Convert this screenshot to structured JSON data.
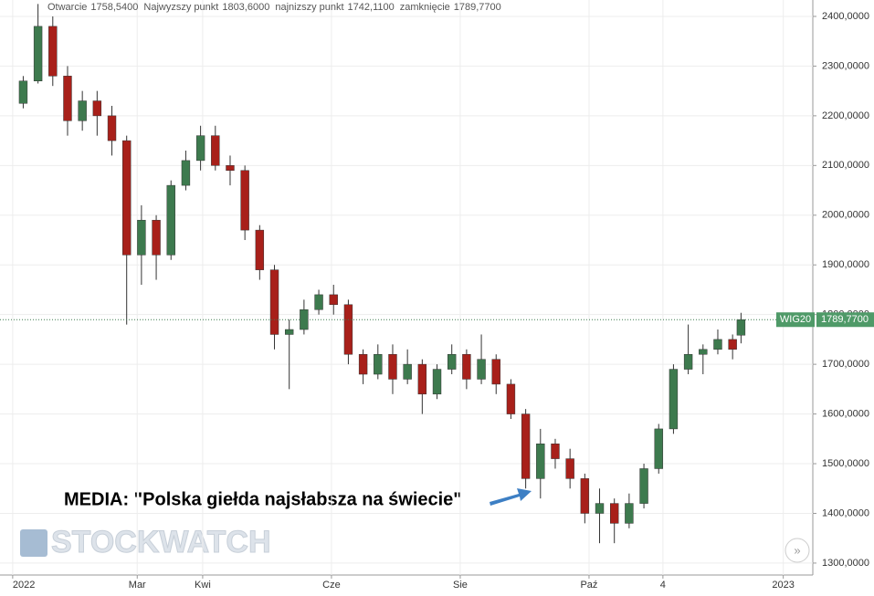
{
  "chart_data": {
    "type": "candlestick",
    "header": [
      {
        "label": "Otwarcie",
        "value": "1758,5400"
      },
      {
        "label": "Najwyzszy punkt",
        "value": "1803,6000"
      },
      {
        "label": "najnizszy punkt",
        "value": "1742,1100"
      },
      {
        "label": "zamknięcie",
        "value": "1789,7700"
      }
    ],
    "symbol": "WIG20",
    "last_price": {
      "value": 1789.77,
      "label": "1789,7700"
    },
    "annotation": "MEDIA: \"Polska giełda najsłabsza na świecie\"",
    "watermark": "STOCKWATCH",
    "up_color": "#3d7a4e",
    "down_color": "#a8201a",
    "x": [
      5,
      12,
      19,
      26,
      33,
      40,
      47,
      54,
      61,
      68,
      75,
      82,
      89,
      96,
      103,
      110,
      117,
      124,
      131,
      138,
      145,
      152,
      159,
      166,
      173,
      180,
      187,
      194,
      201,
      208,
      215,
      222,
      229,
      236,
      243,
      250,
      257,
      264,
      271,
      278,
      285,
      292,
      299,
      306,
      313,
      320,
      327,
      334,
      341,
      345
    ],
    "open": [
      2225,
      2270,
      2380,
      2280,
      2190,
      2230,
      2200,
      2150,
      1920,
      1990,
      1920,
      2060,
      2110,
      2160,
      2100,
      2090,
      1970,
      1890,
      1760,
      1770,
      1810,
      1840,
      1820,
      1720,
      1680,
      1720,
      1670,
      1700,
      1640,
      1690,
      1720,
      1670,
      1710,
      1660,
      1600,
      1470,
      1540,
      1510,
      1470,
      1400,
      1420,
      1380,
      1420,
      1490,
      1570,
      1690,
      1720,
      1730,
      1750,
      1758.54
    ],
    "high": [
      2280,
      2425,
      2400,
      2300,
      2250,
      2250,
      2220,
      2160,
      2020,
      2000,
      2070,
      2130,
      2180,
      2180,
      2120,
      2100,
      1980,
      1900,
      1790,
      1830,
      1850,
      1860,
      1830,
      1730,
      1740,
      1740,
      1730,
      1710,
      1700,
      1740,
      1730,
      1760,
      1720,
      1670,
      1610,
      1570,
      1550,
      1530,
      1480,
      1450,
      1430,
      1440,
      1500,
      1580,
      1700,
      1780,
      1740,
      1770,
      1760,
      1803.6
    ],
    "low": [
      2215,
      2265,
      2260,
      2160,
      2170,
      2160,
      2120,
      1780,
      1860,
      1870,
      1910,
      2050,
      2090,
      2090,
      2060,
      1950,
      1870,
      1730,
      1650,
      1760,
      1800,
      1800,
      1700,
      1660,
      1670,
      1640,
      1660,
      1600,
      1630,
      1680,
      1650,
      1660,
      1640,
      1590,
      1450,
      1430,
      1490,
      1450,
      1380,
      1340,
      1340,
      1370,
      1410,
      1480,
      1560,
      1680,
      1680,
      1720,
      1710,
      1742.11
    ],
    "close": [
      2270,
      2380,
      2280,
      2190,
      2230,
      2200,
      2150,
      1920,
      1990,
      1920,
      2060,
      2110,
      2160,
      2100,
      2090,
      1970,
      1890,
      1760,
      1770,
      1810,
      1840,
      1820,
      1720,
      1680,
      1720,
      1670,
      1700,
      1640,
      1690,
      1720,
      1670,
      1710,
      1660,
      1600,
      1470,
      1540,
      1510,
      1470,
      1400,
      1420,
      1380,
      1420,
      1490,
      1570,
      1690,
      1720,
      1730,
      1750,
      1730,
      1789.77
    ],
    "xlim": [
      -6,
      379
    ],
    "xticks": [
      {
        "value": 0,
        "label": "2022"
      },
      {
        "value": 59,
        "label": "Mar"
      },
      {
        "value": 90,
        "label": "Kwi"
      },
      {
        "value": 151,
        "label": "Cze"
      },
      {
        "value": 212,
        "label": "Sie"
      },
      {
        "value": 273,
        "label": "Paź"
      },
      {
        "value": 308,
        "label": "4"
      },
      {
        "value": 365,
        "label": "2023"
      }
    ],
    "ylim": [
      1276,
      2433
    ],
    "yticks": [
      {
        "value": 1300,
        "label": "1300,0000"
      },
      {
        "value": 1400,
        "label": "1400,0000"
      },
      {
        "value": 1500,
        "label": "1500,0000"
      },
      {
        "value": 1600,
        "label": "1600,0000"
      },
      {
        "value": 1700,
        "label": "1700,0000"
      },
      {
        "value": 1800,
        "label": "1800,0000"
      },
      {
        "value": 1900,
        "label": "1900,0000"
      },
      {
        "value": 2000,
        "label": "2000,0000"
      },
      {
        "value": 2100,
        "label": "2100,0000"
      },
      {
        "value": 2200,
        "label": "2200,0000"
      },
      {
        "value": 2300,
        "label": "2300,0000"
      },
      {
        "value": 2400,
        "label": "2400,0000"
      }
    ]
  }
}
